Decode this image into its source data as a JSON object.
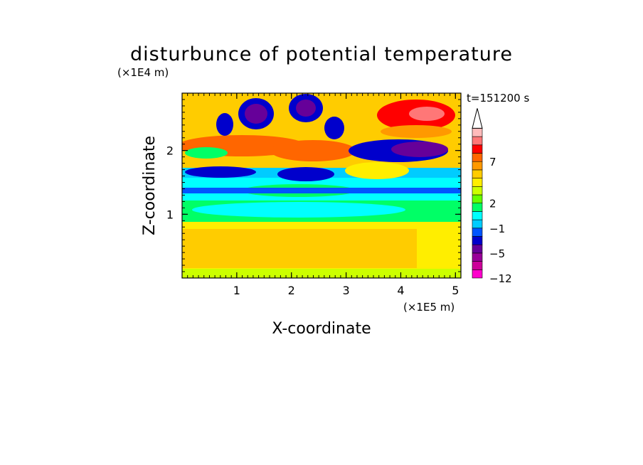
{
  "chart_data": {
    "type": "heatmap",
    "title": "disturbunce of potential temperature",
    "xlabel": "X-coordinate",
    "ylabel": "Z-coordinate",
    "x_unit": "(×1E5 m)",
    "y_unit": "(×1E4 m)",
    "time_label": "t=151200 s",
    "xlim": [
      0,
      5.1
    ],
    "ylim": [
      0,
      2.9
    ],
    "xticks": [
      1,
      2,
      3,
      4,
      5
    ],
    "yticks": [
      1,
      2
    ],
    "colorbar": {
      "levels": [
        -12,
        -9,
        -7,
        -5,
        -3,
        -2,
        -1,
        0,
        1,
        2,
        3,
        4,
        5,
        6,
        7,
        8,
        9,
        11,
        13
      ],
      "tick_labels": [
        "7",
        "2",
        "-1",
        "-5",
        "-12"
      ],
      "colors": [
        "#ff00cc",
        "#cc0099",
        "#990099",
        "#660099",
        "#0000cc",
        "#0055ff",
        "#00ccff",
        "#00ffff",
        "#00ff66",
        "#66ff00",
        "#ccff00",
        "#ffee00",
        "#ffcc00",
        "#ff9900",
        "#ff6600",
        "#ff0000",
        "#ff7777",
        "#ffbbbb"
      ],
      "extend": "max"
    },
    "grid": false
  }
}
